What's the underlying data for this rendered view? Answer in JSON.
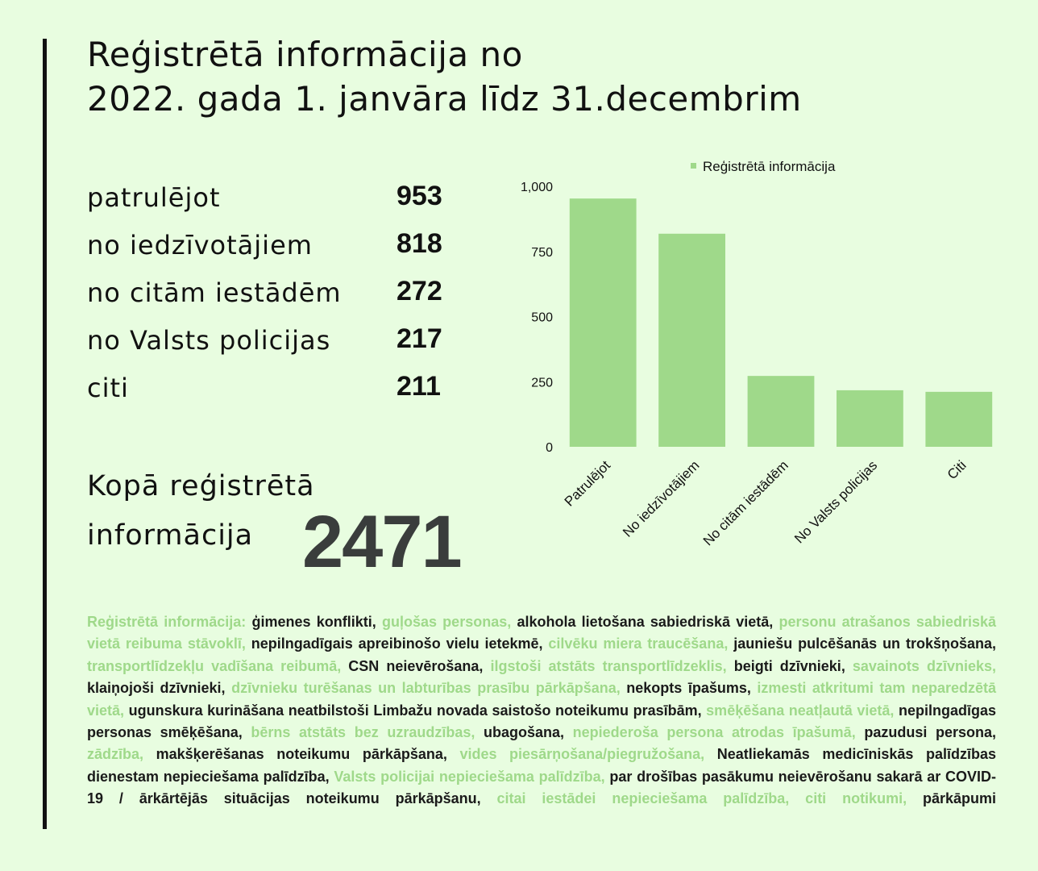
{
  "title": {
    "line1": "Reģistrētā informācija no",
    "line2": "2022. gada 1. janvāra līdz 31.decembrim"
  },
  "stats": [
    {
      "label": "patrulējot",
      "value": "953"
    },
    {
      "label": "no iedzīvotājiem",
      "value": "818"
    },
    {
      "label": "no citām iestādēm",
      "value": "272"
    },
    {
      "label": "no Valsts policijas",
      "value": "217"
    },
    {
      "label": "citi",
      "value": "211"
    }
  ],
  "total": {
    "label_line1": "Kopā reģistrētā",
    "label_line2": "informācija",
    "value": "2471"
  },
  "colors": {
    "background": "#e8fde0",
    "bar": "#9fd98a",
    "accent_text": "#9fd98a",
    "total_value": "#3a3d3c"
  },
  "chart_data": {
    "type": "bar",
    "categories": [
      "Patrulējot",
      "No iedzīvotājiem",
      "No citām iestādēm",
      "No Valsts policijas",
      "Citi"
    ],
    "series": [
      {
        "name": "Reģistrētā informācija",
        "values": [
          953,
          818,
          272,
          217,
          211
        ]
      }
    ],
    "ylim": [
      0,
      1000
    ],
    "yticks": [
      0,
      250,
      500,
      750,
      1000
    ],
    "ytick_labels": [
      "0",
      "250",
      "500",
      "750",
      "1,000"
    ],
    "legend": "top",
    "grid": false
  },
  "notes": [
    {
      "text": "Reģistrētā informācija:",
      "accent": true
    },
    {
      "text": " ģimenes konflikti, ",
      "accent": false
    },
    {
      "text": "guļošas personas,",
      "accent": true
    },
    {
      "text": " alkohola lietošana sabiedriskā vietā, ",
      "accent": false
    },
    {
      "text": "personu atrašanos sabiedriskā vietā reibuma stāvoklī,",
      "accent": true
    },
    {
      "text": " nepilngadīgais apreibinošo vielu ietekmē, ",
      "accent": false
    },
    {
      "text": "cilvēku miera traucēšana,",
      "accent": true
    },
    {
      "text": " jauniešu pulcēšanās un trokšņošana, ",
      "accent": false
    },
    {
      "text": "transportlīdzekļu vadīšana reibumā,",
      "accent": true
    },
    {
      "text": " CSN neievērošana, ",
      "accent": false
    },
    {
      "text": "ilgstoši atstāts transportlīdzeklis,",
      "accent": true
    },
    {
      "text": " beigti dzīvnieki, ",
      "accent": false
    },
    {
      "text": "savainots dzīvnieks,",
      "accent": true
    },
    {
      "text": " klaiņojoši dzīvnieki, ",
      "accent": false
    },
    {
      "text": "dzīvnieku turēšanas un labturības prasību pārkāpšana,",
      "accent": true
    },
    {
      "text": " nekopts īpašums, ",
      "accent": false
    },
    {
      "text": "izmesti atkritumi tam neparedzētā vietā,",
      "accent": true
    },
    {
      "text": " ugunskura kurināšana neatbilstoši Limbažu novada saistošo noteikumu prasībām, ",
      "accent": false
    },
    {
      "text": "smēķēšana neatļautā vietā,",
      "accent": true
    },
    {
      "text": " nepilngadīgas personas smēķēšana, ",
      "accent": false
    },
    {
      "text": "bērns atstāts bez uzraudzības,",
      "accent": true
    },
    {
      "text": " ubagošana, ",
      "accent": false
    },
    {
      "text": "nepiederoša persona atrodas īpašumā,",
      "accent": true
    },
    {
      "text": " pazudusi persona, ",
      "accent": false
    },
    {
      "text": "zādzība,",
      "accent": true
    },
    {
      "text": " makšķerēšanas noteikumu pārkāpšana, ",
      "accent": false
    },
    {
      "text": "vides piesārņošana/piegružošana,",
      "accent": true
    },
    {
      "text": " Neatliekamās medicīniskās palīdzības dienestam nepieciešama palīdzība, ",
      "accent": false
    },
    {
      "text": "Valsts policijai nepieciešama palīdzība,",
      "accent": true
    },
    {
      "text": " par drošības pasākumu neievērošanu sakarā ar COVID-19 / ārkārtējās situācijas noteikumu pārkāpšanu, ",
      "accent": false
    },
    {
      "text": "citai iestādei nepieciešama palīdzība, citi notikumi,",
      "accent": true
    },
    {
      "text": " pārkāpumi",
      "accent": false
    }
  ]
}
